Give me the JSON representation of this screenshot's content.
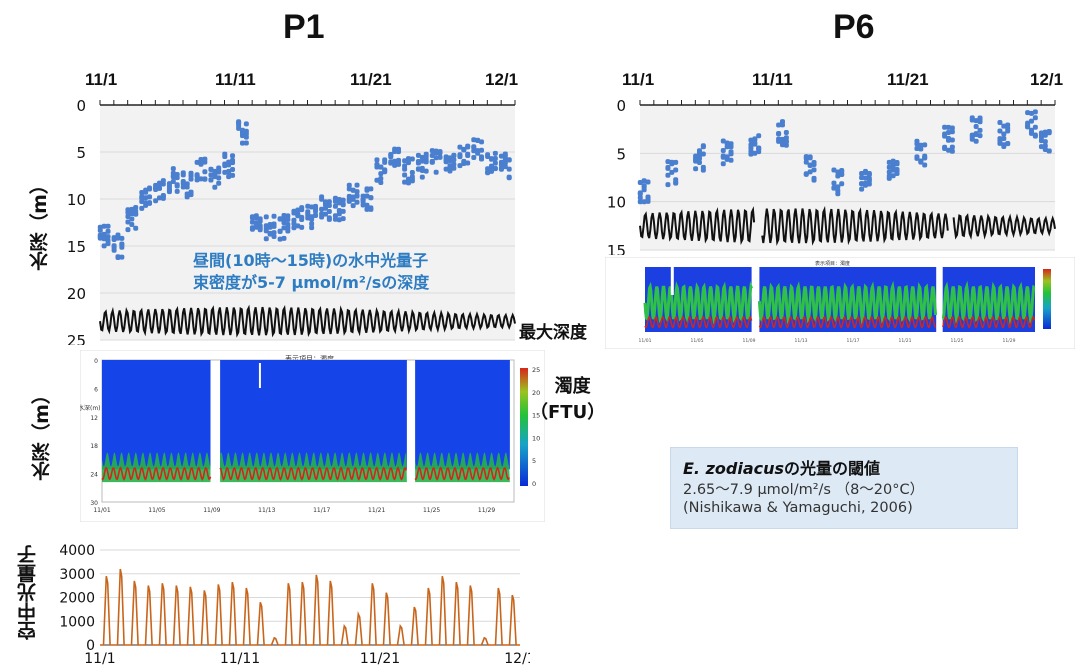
{
  "panels": {
    "p1": {
      "title": "P1",
      "dates": [
        "11/1",
        "11/11",
        "11/21",
        "12/1"
      ]
    },
    "p6": {
      "title": "P6",
      "dates": [
        "11/1",
        "11/11",
        "11/21",
        "12/1"
      ]
    }
  },
  "depth_axis": {
    "label": "水深（m）",
    "ticks_p1": [
      "0",
      "5",
      "10",
      "15",
      "20",
      "25"
    ],
    "ticks_p6": [
      "0",
      "5",
      "10",
      "15"
    ]
  },
  "annotation": {
    "line1": "昼間(10時～15時)の水中光量子",
    "line2": "束密度が5-7 μmol/m²/sの深度"
  },
  "max_depth_label": "最大深度",
  "turbidity": {
    "label_line1": "濁度",
    "label_line2": "（FTU）",
    "header": "表示項目：濁度",
    "ylabel": "水深(m)",
    "yticks": [
      "0",
      "6",
      "12",
      "18",
      "24",
      "30"
    ],
    "xticks": [
      "11/01",
      "11/05",
      "11/09",
      "11/13",
      "11/17",
      "11/21",
      "11/25",
      "11/29"
    ],
    "colorbar_ticks": [
      "25",
      "20",
      "15",
      "10",
      "5",
      "0"
    ]
  },
  "p6_turbidity": {
    "header": "表示項目：濁度",
    "xticks": [
      "11/01",
      "11/05",
      "11/09",
      "11/13",
      "11/17",
      "11/21",
      "11/25",
      "11/29"
    ]
  },
  "threshold_box": {
    "species": "E. zodiacus",
    "title_suffix": "の光量の閾値",
    "range": "2.65～7.9 μmol/m²/s （8～20°C）",
    "citation": "(Nishikawa & Yamaguchi, 2006)"
  },
  "air_light": {
    "label": "空中光量子",
    "yticks": [
      "4000",
      "3000",
      "2000",
      "1000",
      "0"
    ],
    "xticks": [
      "11/1",
      "11/11",
      "11/21",
      "12/1"
    ]
  },
  "colors": {
    "dots": "#4a7fcf",
    "max_depth_line": "#111111",
    "air_light": "#c8651b",
    "note": "#2e7cc1",
    "plot_bg": "#f2f2f2"
  },
  "chart_data": [
    {
      "type": "scatter",
      "title": "P1",
      "xlabel": "",
      "ylabel": "水深（m）",
      "ylim": [
        25,
        0
      ],
      "x_ticks": [
        "11/1",
        "11/11",
        "11/21",
        "12/1"
      ],
      "series": [
        {
          "x": [
            "11/1",
            "11/2",
            "11/3",
            "11/4",
            "11/5",
            "11/6",
            "11/7",
            "11/8",
            "11/9",
            "11/10",
            "11/11",
            "11/12",
            "11/13",
            "11/14",
            "11/15",
            "11/16",
            "11/17",
            "11/18",
            "11/19",
            "11/20",
            "11/21",
            "11/22",
            "11/23",
            "11/24",
            "11/25",
            "11/26",
            "11/27",
            "11/28",
            "11/29",
            "11/30"
          ],
          "y": [
            14,
            15,
            12,
            10,
            9,
            8,
            8.5,
            7,
            8,
            6.5,
            3,
            12,
            13,
            13,
            12,
            12,
            11,
            11,
            9.5,
            10,
            7,
            6,
            7,
            6.5,
            6,
            6,
            5.5,
            5,
            6,
            6.5
          ]
        }
      ]
    },
    {
      "type": "line",
      "title": "",
      "ylim": [
        25,
        0
      ],
      "series": [
        {
          "name": "最大深度",
          "x_range": [
            "11/1",
            "12/1"
          ],
          "mean": 23,
          "amplitude": 1.5
        }
      ]
    },
    {
      "type": "scatter",
      "title": "P6",
      "xlabel": "",
      "ylim": [
        15,
        0
      ],
      "x_ticks": [
        "11/1",
        "11/11",
        "11/21",
        "12/1"
      ],
      "series": [
        {
          "x": [
            "11/1",
            "11/3",
            "11/5",
            "11/7",
            "11/9",
            "11/11",
            "11/13",
            "11/15",
            "11/17",
            "11/19",
            "11/21",
            "11/23",
            "11/25",
            "11/27",
            "11/29",
            "11/30"
          ],
          "y": [
            9,
            7,
            5.5,
            5,
            4,
            3,
            6.5,
            8,
            8,
            7,
            5,
            3.5,
            2.5,
            3,
            2,
            3.5
          ]
        }
      ]
    },
    {
      "type": "line",
      "title": "",
      "ylabel": "空中光量子",
      "ylim": [
        0,
        4000
      ],
      "x_ticks": [
        "11/1",
        "11/11",
        "11/21",
        "12/1"
      ],
      "series": [
        {
          "name": "",
          "x": [
            "11/1",
            "11/2",
            "11/3",
            "11/4",
            "11/5",
            "11/6",
            "11/7",
            "11/8",
            "11/9",
            "11/10",
            "11/11",
            "11/12",
            "11/13",
            "11/14",
            "11/15",
            "11/16",
            "11/17",
            "11/18",
            "11/19",
            "11/20",
            "11/21",
            "11/22",
            "11/23",
            "11/24",
            "11/25",
            "11/26",
            "11/27",
            "11/28",
            "11/29",
            "11/30"
          ],
          "y": [
            2900,
            3200,
            2700,
            2500,
            2600,
            2500,
            2450,
            2300,
            2550,
            2650,
            2400,
            1800,
            300,
            2600,
            2650,
            2950,
            2700,
            800,
            1300,
            2600,
            2200,
            800,
            1600,
            2400,
            2900,
            2650,
            2500,
            300,
            2400,
            2100
          ]
        }
      ]
    }
  ]
}
